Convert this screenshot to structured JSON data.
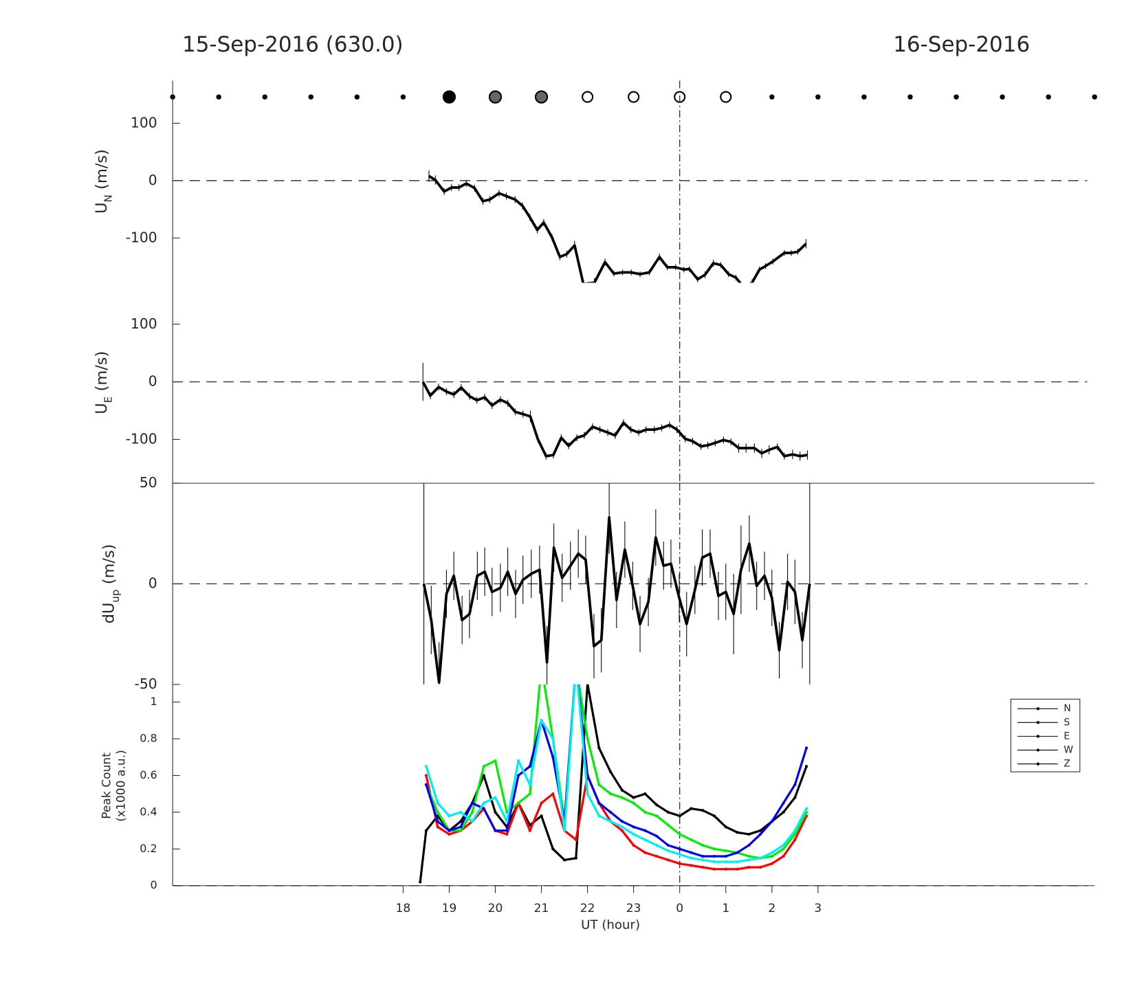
{
  "chart_data": [
    {
      "type": "line",
      "title_left": "15-Sep-2016 (630.0)",
      "title_right": "16-Sep-2016",
      "ylabel_main": "U",
      "ylabel_sub": "N",
      "ylabel_unit": "(m/s)",
      "xlim": [
        13,
        33
      ],
      "ylim": [
        -178,
        174
      ],
      "yticks": [
        -100,
        0,
        100
      ],
      "zero_line": true,
      "vline": 24,
      "x": [
        18.56,
        18.7,
        18.89,
        19.05,
        19.21,
        19.37,
        19.55,
        19.73,
        19.88,
        20.08,
        20.24,
        20.43,
        20.59,
        20.75,
        20.91,
        21.05,
        21.23,
        21.4,
        21.55,
        21.72,
        21.91,
        22.15,
        22.38,
        22.57,
        22.76,
        22.95,
        23.14,
        23.34,
        23.56,
        23.73,
        23.91,
        24.09,
        24.21,
        24.39,
        24.55,
        24.73,
        24.89,
        25.06,
        25.22,
        25.38,
        25.57,
        25.73,
        25.86,
        26.02,
        26.27,
        26.42,
        26.56,
        26.74
      ],
      "series": [
        {
          "color": "#000000",
          "values": [
            8,
            1,
            -19,
            -12,
            -12,
            -5,
            -13,
            -36,
            -33,
            -22,
            -27,
            -33,
            -44,
            -64,
            -86,
            -73,
            -99,
            -133,
            -128,
            -113,
            -180,
            -178,
            -142,
            -162,
            -160,
            -160,
            -163,
            -160,
            -133,
            -151,
            -151,
            -155,
            -154,
            -172,
            -164,
            -144,
            -147,
            -163,
            -169,
            -185,
            -178,
            -155,
            -149,
            -141,
            -126,
            -126,
            -124,
            -110
          ],
          "errors": [
            10,
            8,
            6,
            6,
            6,
            6,
            6,
            6,
            6,
            6,
            6,
            6,
            6,
            6,
            6,
            6,
            6,
            6,
            6,
            8,
            8,
            8,
            6,
            5,
            5,
            5,
            5,
            5,
            6,
            5,
            5,
            5,
            5,
            5,
            6,
            6,
            5,
            5,
            5,
            6,
            6,
            5,
            5,
            5,
            5,
            5,
            5,
            8
          ]
        }
      ]
    },
    {
      "type": "line",
      "ylabel_main": "U",
      "ylabel_sub": "E",
      "ylabel_unit": "(m/s)",
      "xlim": [
        13,
        33
      ],
      "ylim": [
        -176,
        172
      ],
      "yticks": [
        -100,
        0,
        100
      ],
      "zero_line": true,
      "vline": 24,
      "x": [
        18.43,
        18.59,
        18.77,
        18.94,
        19.1,
        19.26,
        19.44,
        19.6,
        19.77,
        19.93,
        20.11,
        20.27,
        20.43,
        20.6,
        20.76,
        20.92,
        21.1,
        21.26,
        21.43,
        21.59,
        21.77,
        21.93,
        22.11,
        22.27,
        22.44,
        22.6,
        22.78,
        22.94,
        23.11,
        23.27,
        23.45,
        23.61,
        23.78,
        23.94,
        24.12,
        24.28,
        24.46,
        24.61,
        24.77,
        24.95,
        25.11,
        25.28,
        25.44,
        25.62,
        25.78,
        25.94,
        26.12,
        26.27,
        26.45,
        26.61,
        26.77
      ],
      "series": [
        {
          "color": "#000000",
          "values": [
            0,
            -24,
            -9,
            -17,
            -22,
            -10,
            -25,
            -32,
            -27,
            -41,
            -31,
            -37,
            -52,
            -56,
            -60,
            -99,
            -129,
            -127,
            -97,
            -111,
            -97,
            -93,
            -78,
            -83,
            -88,
            -93,
            -71,
            -83,
            -88,
            -83,
            -83,
            -80,
            -75,
            -83,
            -99,
            -103,
            -112,
            -110,
            -106,
            -101,
            -104,
            -115,
            -115,
            -115,
            -124,
            -118,
            -113,
            -129,
            -126,
            -129,
            -127
          ],
          "errors": [
            33,
            6,
            6,
            6,
            6,
            6,
            6,
            6,
            6,
            6,
            6,
            6,
            6,
            6,
            10,
            6,
            6,
            6,
            6,
            6,
            6,
            6,
            6,
            6,
            6,
            6,
            6,
            6,
            6,
            6,
            6,
            6,
            6,
            6,
            6,
            6,
            6,
            6,
            6,
            6,
            6,
            8,
            8,
            8,
            8,
            8,
            6,
            6,
            8,
            8,
            8
          ]
        }
      ]
    },
    {
      "type": "line",
      "ylabel_main": "dU",
      "ylabel_sub": "up",
      "ylabel_unit": "(m/s)",
      "xlim": [
        13,
        33
      ],
      "ylim": [
        -50,
        50
      ],
      "yticks": [
        -50,
        0,
        50
      ],
      "zero_line": true,
      "vline": 24,
      "x": [
        18.45,
        18.61,
        18.78,
        18.94,
        19.1,
        19.28,
        19.44,
        19.61,
        19.77,
        19.93,
        20.11,
        20.27,
        20.44,
        20.6,
        20.78,
        20.96,
        21.12,
        21.27,
        21.45,
        21.63,
        21.8,
        21.96,
        22.14,
        22.3,
        22.47,
        22.63,
        22.81,
        22.98,
        23.14,
        23.32,
        23.48,
        23.65,
        23.81,
        23.99,
        24.15,
        24.33,
        24.49,
        24.66,
        24.84,
        25.0,
        25.17,
        25.33,
        25.51,
        25.67,
        25.84,
        26.0,
        26.16,
        26.34,
        26.5,
        26.66,
        26.82
      ],
      "series": [
        {
          "color": "#000000",
          "values": [
            0,
            -18,
            -49,
            -5,
            4,
            -18,
            -15,
            4,
            6,
            -4,
            -2,
            6,
            -5,
            2,
            5,
            7,
            -39,
            18,
            3,
            9,
            15,
            12,
            -31,
            -28,
            33,
            -8,
            17,
            -1,
            -20,
            -9,
            23,
            9,
            10,
            -7,
            -20,
            -3,
            13,
            15,
            -6,
            -4,
            -15,
            7,
            20,
            -1,
            4,
            -7,
            -33,
            1,
            -4,
            -28,
            0
          ],
          "errors": [
            68,
            17,
            20,
            12,
            12,
            12,
            12,
            12,
            12,
            12,
            12,
            12,
            12,
            12,
            12,
            12,
            18,
            12,
            12,
            12,
            12,
            12,
            16,
            16,
            18,
            14,
            14,
            12,
            14,
            12,
            14,
            12,
            12,
            12,
            16,
            12,
            14,
            12,
            12,
            14,
            20,
            22,
            14,
            12,
            12,
            14,
            14,
            14,
            16,
            14,
            68
          ]
        }
      ]
    },
    {
      "type": "line",
      "ylabel_line1": "Peak Count",
      "ylabel_line2": "(x1000 a.u.)",
      "xlabel": "UT (hour)",
      "xlim": [
        13,
        33
      ],
      "ylim": [
        0,
        1.096
      ],
      "yticks": [
        0,
        0.2,
        0.4,
        0.6,
        0.8,
        1
      ],
      "zero_line": true,
      "vline": 24,
      "xticks": [
        18,
        19,
        20,
        21,
        22,
        23,
        {
          "value": 24,
          "label": "0"
        },
        {
          "value": 25,
          "label": "1"
        },
        {
          "value": 26,
          "label": "2"
        },
        {
          "value": 27,
          "label": "3"
        }
      ],
      "legend": "upper right",
      "legend_line_color": "#000000",
      "x": [
        18.37,
        18.5,
        18.75,
        19,
        19.25,
        19.5,
        19.75,
        20,
        20.25,
        20.5,
        20.75,
        21,
        21.25,
        21.5,
        21.75,
        22,
        22.25,
        22.5,
        22.75,
        23,
        23.25,
        23.5,
        23.75,
        24,
        24.25,
        24.5,
        24.75,
        25,
        25.25,
        25.5,
        25.75,
        26,
        26.25,
        26.5,
        26.75
      ],
      "series": [
        {
          "name": "N",
          "color": "#000000",
          "values": [
            0.02,
            0.3,
            0.38,
            0.3,
            0.35,
            0.45,
            0.6,
            0.4,
            0.32,
            0.45,
            0.33,
            0.38,
            0.2,
            0.14,
            0.15,
            1.1,
            0.75,
            0.62,
            0.52,
            0.48,
            0.5,
            0.44,
            0.4,
            0.38,
            0.42,
            0.41,
            0.38,
            0.32,
            0.29,
            0.28,
            0.3,
            0.35,
            0.4,
            0.48,
            0.65
          ]
        },
        {
          "name": "S",
          "color": "#ff0000",
          "values": [
            null,
            0.6,
            0.32,
            0.28,
            0.3,
            0.35,
            0.42,
            0.3,
            0.28,
            0.45,
            0.3,
            0.45,
            0.5,
            0.3,
            0.25,
            0.6,
            0.45,
            0.35,
            0.3,
            0.22,
            0.18,
            0.16,
            0.14,
            0.12,
            0.11,
            0.1,
            0.09,
            0.09,
            0.09,
            0.1,
            0.1,
            0.12,
            0.16,
            0.25,
            0.38
          ]
        },
        {
          "name": "E",
          "color": "#00ee00",
          "values": [
            null,
            0.55,
            0.4,
            0.3,
            0.3,
            0.4,
            0.65,
            0.68,
            0.4,
            0.45,
            0.5,
            1.2,
            0.8,
            0.35,
            1.2,
            0.8,
            0.55,
            0.5,
            0.48,
            0.45,
            0.4,
            0.38,
            0.33,
            0.28,
            0.25,
            0.22,
            0.2,
            0.19,
            0.18,
            0.16,
            0.15,
            0.16,
            0.2,
            0.28,
            0.4
          ]
        },
        {
          "name": "W",
          "color": "#0000ee",
          "values": [
            null,
            0.55,
            0.35,
            0.3,
            0.32,
            0.45,
            0.42,
            0.3,
            0.3,
            0.6,
            0.65,
            0.9,
            0.7,
            0.35,
            1.2,
            0.6,
            0.45,
            0.4,
            0.35,
            0.32,
            0.3,
            0.27,
            0.22,
            0.2,
            0.18,
            0.16,
            0.16,
            0.16,
            0.18,
            0.22,
            0.28,
            0.35,
            0.45,
            0.55,
            0.75
          ]
        },
        {
          "name": "Z",
          "color": "#00eeee",
          "values": [
            null,
            0.65,
            0.45,
            0.38,
            0.4,
            0.35,
            0.45,
            0.48,
            0.35,
            0.68,
            0.55,
            0.9,
            0.8,
            0.3,
            1.2,
            0.5,
            0.38,
            0.35,
            0.32,
            0.28,
            0.25,
            0.22,
            0.19,
            0.17,
            0.15,
            0.14,
            0.13,
            0.13,
            0.13,
            0.14,
            0.15,
            0.18,
            0.22,
            0.3,
            0.42
          ]
        }
      ]
    }
  ]
}
